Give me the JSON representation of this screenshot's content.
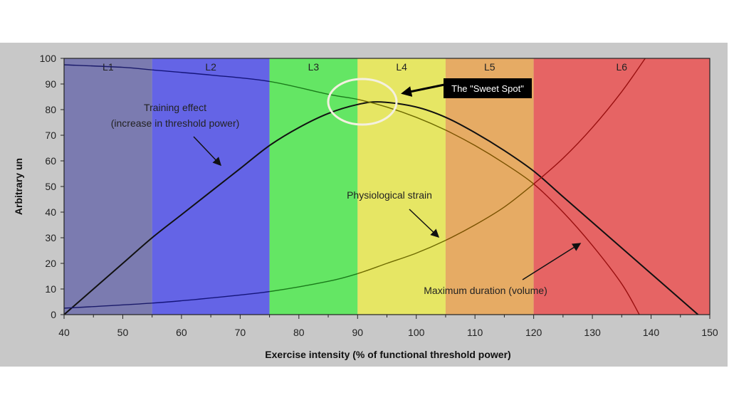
{
  "chart_data": {
    "type": "line",
    "xlabel": "Exercise intensity (% of functional threshold power)",
    "ylabel": "Arbitrary un",
    "xlim": [
      40,
      150
    ],
    "ylim": [
      0,
      100
    ],
    "xticks": [
      40,
      50,
      60,
      70,
      80,
      90,
      100,
      110,
      120,
      130,
      140,
      150
    ],
    "yticks": [
      0,
      10,
      20,
      30,
      40,
      50,
      60,
      70,
      80,
      90,
      100
    ],
    "grid": false,
    "zones": [
      {
        "label": "L1",
        "from": 40,
        "to": 55,
        "color": "#7b7bb0",
        "line": "#1a1a6a"
      },
      {
        "label": "L2",
        "from": 55,
        "to": 75,
        "color": "#6464e6",
        "line": "#14147a"
      },
      {
        "label": "L3",
        "from": 75,
        "to": 90,
        "color": "#64e664",
        "line": "#1a7a1a"
      },
      {
        "label": "L4",
        "from": 90,
        "to": 105,
        "color": "#e6e664",
        "line": "#6e6a00"
      },
      {
        "label": "L5",
        "from": 105,
        "to": 120,
        "color": "#e6ab64",
        "line": "#7a5200"
      },
      {
        "label": "L6",
        "from": 120,
        "to": 150,
        "color": "#e66464",
        "line": "#9a1010"
      }
    ],
    "series": [
      {
        "name": "Training effect (increase in threshold power)",
        "color": "#111111",
        "points": [
          [
            40,
            0
          ],
          [
            45,
            10
          ],
          [
            50,
            20
          ],
          [
            55,
            30
          ],
          [
            60,
            39
          ],
          [
            65,
            48
          ],
          [
            70,
            57
          ],
          [
            75,
            66
          ],
          [
            80,
            73
          ],
          [
            85,
            78.5
          ],
          [
            90,
            82
          ],
          [
            94,
            83
          ],
          [
            100,
            81
          ],
          [
            105,
            77
          ],
          [
            110,
            71
          ],
          [
            115,
            64
          ],
          [
            120,
            56
          ],
          [
            125,
            46
          ],
          [
            130,
            36
          ],
          [
            135,
            26
          ],
          [
            140,
            16
          ],
          [
            145,
            6
          ],
          [
            148,
            0
          ]
        ]
      },
      {
        "name": "Maximum duration (volume)",
        "zone_colored": true,
        "points": [
          [
            40,
            97.5
          ],
          [
            50,
            96.5
          ],
          [
            55,
            95.5
          ],
          [
            65,
            93.5
          ],
          [
            75,
            91
          ],
          [
            85,
            86
          ],
          [
            90,
            84
          ],
          [
            95,
            81
          ],
          [
            100,
            77
          ],
          [
            105,
            72
          ],
          [
            110,
            66
          ],
          [
            115,
            59
          ],
          [
            120,
            51
          ],
          [
            125,
            40
          ],
          [
            130,
            27
          ],
          [
            135,
            12
          ],
          [
            138,
            0
          ]
        ]
      },
      {
        "name": "Physiological strain",
        "zone_colored": true,
        "points": [
          [
            40,
            2.5
          ],
          [
            55,
            4.5
          ],
          [
            65,
            6.5
          ],
          [
            75,
            9
          ],
          [
            85,
            13
          ],
          [
            90,
            16
          ],
          [
            95,
            20
          ],
          [
            100,
            24
          ],
          [
            105,
            29
          ],
          [
            110,
            35
          ],
          [
            115,
            42
          ],
          [
            120,
            51
          ],
          [
            125,
            61
          ],
          [
            130,
            73
          ],
          [
            135,
            87
          ],
          [
            139,
            100
          ]
        ]
      }
    ],
    "annotations": {
      "training_line1": "Training effect",
      "training_line2": "(increase in threshold power)",
      "strain": "Physiological strain",
      "duration": "Maximum duration (volume)",
      "sweet_spot": "The \"Sweet Spot\""
    },
    "colors": {
      "panel": "#c8c8c8",
      "sweet_spot_ring": "#f4f0e0",
      "sweet_spot_box": "#000000"
    }
  }
}
